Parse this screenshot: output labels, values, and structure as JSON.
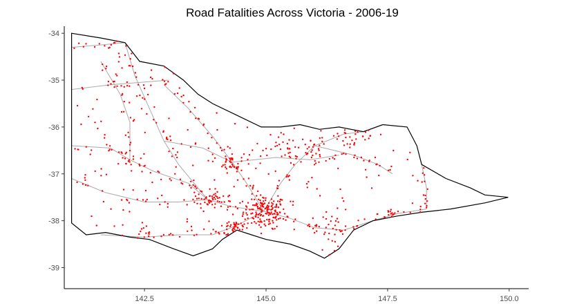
{
  "chart_data": {
    "type": "scatter",
    "title": "Road Fatalities Across Victoria - 2006-19",
    "xlabel": "",
    "ylabel": "",
    "xlim": [
      140.85,
      150.4
    ],
    "ylim": [
      -39.45,
      -33.85
    ],
    "x_ticks": [
      {
        "value": 142.5,
        "label": "142.5"
      },
      {
        "value": 145.0,
        "label": "145.0"
      },
      {
        "value": 147.5,
        "label": "147.5"
      },
      {
        "value": 150.0,
        "label": "150.0"
      }
    ],
    "y_ticks": [
      {
        "value": -34,
        "label": "-34"
      },
      {
        "value": -35,
        "label": "-35"
      },
      {
        "value": -36,
        "label": "-36"
      },
      {
        "value": -37,
        "label": "-37"
      },
      {
        "value": -38,
        "label": "-38"
      },
      {
        "value": -39,
        "label": "-39"
      }
    ],
    "grid": false,
    "colors": {
      "boundary": "#000000",
      "roads": "#a9a9a9",
      "points": "#ff0000"
    },
    "boundary": [
      [
        141.0,
        -34.0
      ],
      [
        141.6,
        -34.1
      ],
      [
        142.1,
        -34.2
      ],
      [
        142.4,
        -34.6
      ],
      [
        142.9,
        -34.7
      ],
      [
        143.3,
        -35.0
      ],
      [
        143.6,
        -35.3
      ],
      [
        143.9,
        -35.5
      ],
      [
        144.4,
        -35.75
      ],
      [
        144.9,
        -36.0
      ],
      [
        145.3,
        -36.0
      ],
      [
        145.7,
        -35.95
      ],
      [
        146.1,
        -36.05
      ],
      [
        146.5,
        -36.0
      ],
      [
        147.0,
        -36.1
      ],
      [
        147.4,
        -35.95
      ],
      [
        147.9,
        -36.0
      ],
      [
        148.1,
        -36.4
      ],
      [
        148.2,
        -36.8
      ],
      [
        148.7,
        -37.1
      ],
      [
        149.2,
        -37.3
      ],
      [
        149.5,
        -37.45
      ],
      [
        149.98,
        -37.5
      ],
      [
        149.5,
        -37.62
      ],
      [
        148.8,
        -37.75
      ],
      [
        148.2,
        -37.82
      ],
      [
        147.7,
        -37.9
      ],
      [
        147.2,
        -38.0
      ],
      [
        146.8,
        -38.2
      ],
      [
        146.5,
        -38.6
      ],
      [
        146.2,
        -38.8
      ],
      [
        145.9,
        -38.65
      ],
      [
        145.5,
        -38.5
      ],
      [
        145.0,
        -38.4
      ],
      [
        144.7,
        -38.3
      ],
      [
        144.4,
        -38.2
      ],
      [
        144.1,
        -38.4
      ],
      [
        143.9,
        -38.6
      ],
      [
        143.5,
        -38.75
      ],
      [
        143.1,
        -38.6
      ],
      [
        142.6,
        -38.4
      ],
      [
        142.2,
        -38.35
      ],
      [
        141.7,
        -38.25
      ],
      [
        141.3,
        -38.3
      ],
      [
        141.0,
        -38.05
      ],
      [
        141.0,
        -34.0
      ]
    ],
    "roads": [
      [
        [
          141.0,
          -34.3
        ],
        [
          141.6,
          -34.25
        ],
        [
          142.1,
          -34.2
        ]
      ],
      [
        [
          142.1,
          -34.2
        ],
        [
          142.3,
          -34.9
        ],
        [
          142.6,
          -35.6
        ],
        [
          142.9,
          -36.3
        ],
        [
          143.2,
          -36.8
        ],
        [
          143.8,
          -37.55
        ]
      ],
      [
        [
          141.0,
          -35.2
        ],
        [
          141.8,
          -35.1
        ],
        [
          142.4,
          -35.05
        ],
        [
          143.0,
          -35.0
        ]
      ],
      [
        [
          141.0,
          -36.4
        ],
        [
          141.8,
          -36.45
        ],
        [
          142.2,
          -36.7
        ],
        [
          142.7,
          -36.95
        ],
        [
          143.4,
          -37.2
        ],
        [
          143.8,
          -37.55
        ]
      ],
      [
        [
          141.0,
          -37.1
        ],
        [
          141.7,
          -37.4
        ],
        [
          142.5,
          -37.6
        ],
        [
          143.2,
          -37.6
        ],
        [
          143.8,
          -37.55
        ]
      ],
      [
        [
          143.8,
          -37.55
        ],
        [
          144.3,
          -37.7
        ],
        [
          144.95,
          -37.8
        ]
      ],
      [
        [
          144.95,
          -37.8
        ],
        [
          144.6,
          -37.2
        ],
        [
          144.3,
          -36.75
        ],
        [
          143.9,
          -36.2
        ],
        [
          143.4,
          -35.6
        ],
        [
          142.9,
          -35.1
        ]
      ],
      [
        [
          144.95,
          -37.8
        ],
        [
          145.3,
          -37.2
        ],
        [
          145.6,
          -36.8
        ],
        [
          146.0,
          -36.4
        ],
        [
          146.6,
          -36.15
        ],
        [
          147.0,
          -36.1
        ]
      ],
      [
        [
          144.95,
          -37.8
        ],
        [
          145.5,
          -37.95
        ],
        [
          146.0,
          -38.15
        ],
        [
          146.6,
          -38.2
        ],
        [
          147.2,
          -38.0
        ],
        [
          147.7,
          -37.85
        ],
        [
          148.3,
          -37.75
        ]
      ],
      [
        [
          144.95,
          -37.8
        ],
        [
          144.4,
          -38.1
        ],
        [
          143.9,
          -38.3
        ],
        [
          143.2,
          -38.3
        ],
        [
          142.5,
          -38.35
        ],
        [
          141.6,
          -38.3
        ]
      ],
      [
        [
          144.3,
          -36.75
        ],
        [
          145.2,
          -36.65
        ],
        [
          145.9,
          -36.7
        ],
        [
          146.5,
          -36.6
        ]
      ],
      [
        [
          142.9,
          -36.3
        ],
        [
          143.7,
          -36.45
        ],
        [
          144.3,
          -36.75
        ]
      ],
      [
        [
          146.0,
          -36.4
        ],
        [
          146.8,
          -36.6
        ],
        [
          147.3,
          -36.8
        ],
        [
          147.6,
          -37.0
        ]
      ],
      [
        [
          148.2,
          -36.8
        ],
        [
          148.3,
          -37.3
        ],
        [
          148.3,
          -37.75
        ]
      ],
      [
        [
          141.6,
          -34.6
        ],
        [
          142.0,
          -35.3
        ],
        [
          142.2,
          -35.9
        ],
        [
          142.2,
          -36.7
        ]
      ]
    ],
    "hubs": [
      {
        "x": 144.97,
        "y": -37.81,
        "n": 140,
        "sd": 0.22
      },
      {
        "x": 144.35,
        "y": -38.15,
        "n": 45,
        "sd": 0.15
      },
      {
        "x": 143.85,
        "y": -37.56,
        "n": 35,
        "sd": 0.13
      },
      {
        "x": 144.28,
        "y": -36.76,
        "n": 30,
        "sd": 0.13
      },
      {
        "x": 145.4,
        "y": -36.4,
        "n": 25,
        "sd": 0.2
      },
      {
        "x": 146.4,
        "y": -38.2,
        "n": 35,
        "sd": 0.25
      },
      {
        "x": 142.2,
        "y": -34.2,
        "n": 8,
        "sd": 0.05
      },
      {
        "x": 142.5,
        "y": -38.35,
        "n": 12,
        "sd": 0.15
      },
      {
        "x": 146.9,
        "y": -36.2,
        "n": 20,
        "sd": 0.2
      },
      {
        "x": 147.6,
        "y": -37.85,
        "n": 15,
        "sd": 0.15
      },
      {
        "x": 142.2,
        "y": -36.7,
        "n": 12,
        "sd": 0.2
      },
      {
        "x": 145.95,
        "y": -36.55,
        "n": 15,
        "sd": 0.15
      }
    ],
    "background_points": 260
  }
}
